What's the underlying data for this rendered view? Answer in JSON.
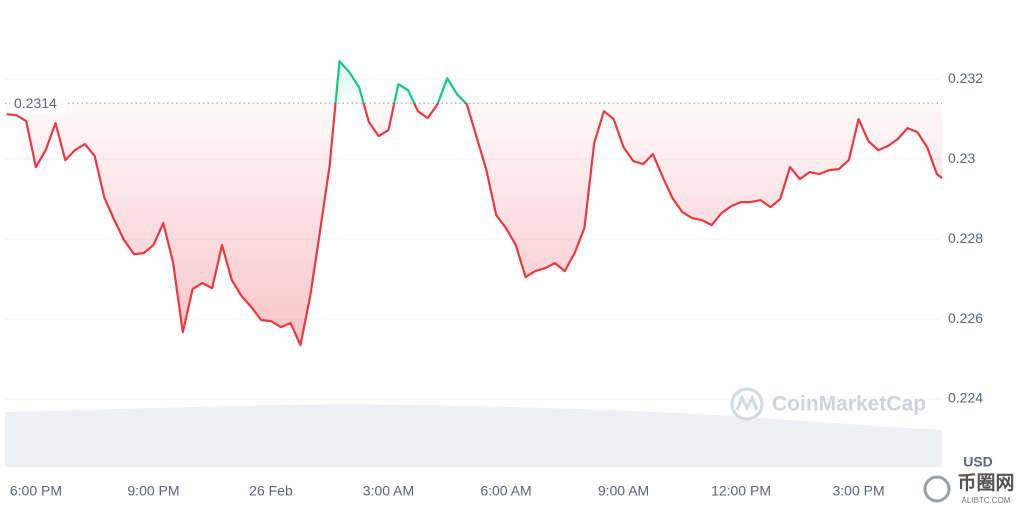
{
  "chart_data": {
    "type": "line",
    "x": [
      -0.75,
      -0.5,
      -0.25,
      0,
      0.25,
      0.5,
      0.75,
      1,
      1.25,
      1.5,
      1.75,
      2,
      2.25,
      2.5,
      2.75,
      3,
      3.25,
      3.5,
      3.75,
      4,
      4.25,
      4.5,
      4.75,
      5,
      5.25,
      5.5,
      5.75,
      6,
      6.25,
      6.5,
      6.75,
      7,
      7.25,
      7.5,
      7.75,
      8,
      8.25,
      8.5,
      8.75,
      9,
      9.25,
      9.5,
      9.75,
      10,
      10.25,
      10.5,
      10.75,
      11,
      11.25,
      11.5,
      11.75,
      12,
      12.25,
      12.5,
      12.75,
      13,
      13.25,
      13.5,
      13.75,
      14,
      14.25,
      14.5,
      14.75,
      15,
      15.25,
      15.5,
      15.75,
      16,
      16.25,
      16.5,
      16.75,
      17,
      17.25,
      17.5,
      17.75,
      18,
      18.25,
      18.5,
      18.75,
      19,
      19.25,
      19.5,
      19.75,
      20,
      20.25,
      20.5,
      20.75,
      21,
      21.25,
      21.5,
      21.75,
      22,
      22.25,
      22.5,
      22.75,
      23,
      23.13
    ],
    "series": [
      {
        "color": "#ea3943",
        "color_above": "#16c784",
        "values": [
          0.231125,
          0.2311,
          0.23095,
          0.2298,
          0.230225,
          0.2309,
          0.229975,
          0.230225,
          0.230375,
          0.230075,
          0.229025,
          0.228475,
          0.227975,
          0.227625,
          0.22765,
          0.22785,
          0.2284,
          0.227425,
          0.225675,
          0.22675,
          0.2269,
          0.226775,
          0.22785,
          0.226975,
          0.226575,
          0.2263,
          0.225975,
          0.22595,
          0.2258,
          0.2259,
          0.22535,
          0.226575,
          0.228175,
          0.22985,
          0.23245,
          0.232175,
          0.2318,
          0.230925,
          0.230575,
          0.230725,
          0.231875,
          0.231725,
          0.2312,
          0.231025,
          0.231375,
          0.232025,
          0.231625,
          0.231375,
          0.23055,
          0.229725,
          0.2286,
          0.228275,
          0.22785,
          0.22705,
          0.2272,
          0.227275,
          0.2274,
          0.2272,
          0.22765,
          0.228275,
          0.2304,
          0.2312,
          0.231,
          0.2303,
          0.22995,
          0.229875,
          0.230125,
          0.22955,
          0.229025,
          0.228675,
          0.228525,
          0.228475,
          0.22835,
          0.22865,
          0.228825,
          0.228925,
          0.228925,
          0.228975,
          0.2288,
          0.229,
          0.2298,
          0.2295,
          0.229675,
          0.229625,
          0.229725,
          0.22975,
          0.229975,
          0.231,
          0.23045,
          0.230225,
          0.230325,
          0.2305,
          0.230775,
          0.230675,
          0.2303,
          0.229625,
          0.229525
        ]
      }
    ],
    "baseline": 0.2314,
    "xlim": [
      -0.79,
      23.13
    ],
    "xticks": [
      {
        "value": 0,
        "label": "6:00 PM"
      },
      {
        "value": 3,
        "label": "9:00 PM"
      },
      {
        "value": 6,
        "label": "26 Feb"
      },
      {
        "value": 9,
        "label": "3:00 AM"
      },
      {
        "value": 12,
        "label": "6:00 AM"
      },
      {
        "value": 15,
        "label": "9:00 AM"
      },
      {
        "value": 18,
        "label": "12:00 PM"
      },
      {
        "value": 21,
        "label": "3:00 PM"
      }
    ],
    "ylim": [
      0.2223,
      0.23398
    ],
    "yticks": [
      0.224,
      0.226,
      0.228,
      0.23,
      0.232
    ],
    "grid": true,
    "currency": "USD",
    "watermark": "CoinMarketCap",
    "corner_logo": [
      "币圈网",
      "ALIBTC.COM"
    ]
  }
}
